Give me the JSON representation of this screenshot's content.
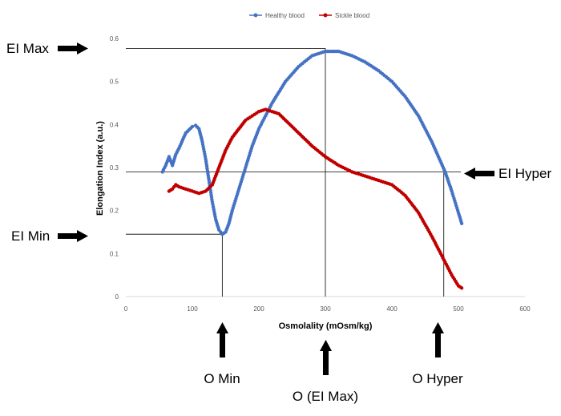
{
  "chart_data": {
    "type": "scatter",
    "title": "",
    "xlabel": "Osmolality (mOsm/kg)",
    "ylabel": "Elongation Index (a.u.)",
    "xlim": [
      0,
      600
    ],
    "ylim": [
      0,
      0.6
    ],
    "x_ticks": [
      0,
      100,
      200,
      300,
      400,
      500,
      600
    ],
    "y_ticks": [
      0,
      0.1,
      0.2,
      0.3,
      0.4,
      0.5,
      0.6
    ],
    "x_tick_labels": [
      "0",
      "100",
      "200",
      "300",
      "400",
      "500",
      "600"
    ],
    "y_tick_labels": [
      "0",
      "0.1",
      "0.2",
      "0.3",
      "0.4",
      "0.5",
      "0.6"
    ],
    "grid": false,
    "legend_position": "top-center",
    "series": [
      {
        "name": "Healthy blood",
        "color": "#4472C4",
        "points": [
          [
            55,
            0.29
          ],
          [
            60,
            0.305
          ],
          [
            65,
            0.325
          ],
          [
            70,
            0.305
          ],
          [
            75,
            0.33
          ],
          [
            80,
            0.345
          ],
          [
            90,
            0.38
          ],
          [
            100,
            0.395
          ],
          [
            105,
            0.398
          ],
          [
            110,
            0.39
          ],
          [
            115,
            0.36
          ],
          [
            120,
            0.32
          ],
          [
            125,
            0.27
          ],
          [
            130,
            0.22
          ],
          [
            135,
            0.18
          ],
          [
            140,
            0.155
          ],
          [
            145,
            0.145
          ],
          [
            150,
            0.15
          ],
          [
            155,
            0.17
          ],
          [
            160,
            0.2
          ],
          [
            170,
            0.25
          ],
          [
            180,
            0.3
          ],
          [
            190,
            0.35
          ],
          [
            200,
            0.39
          ],
          [
            210,
            0.42
          ],
          [
            220,
            0.45
          ],
          [
            240,
            0.5
          ],
          [
            260,
            0.535
          ],
          [
            280,
            0.56
          ],
          [
            300,
            0.57
          ],
          [
            320,
            0.57
          ],
          [
            340,
            0.56
          ],
          [
            360,
            0.545
          ],
          [
            380,
            0.525
          ],
          [
            400,
            0.5
          ],
          [
            420,
            0.465
          ],
          [
            440,
            0.42
          ],
          [
            460,
            0.36
          ],
          [
            470,
            0.325
          ],
          [
            480,
            0.29
          ],
          [
            490,
            0.245
          ],
          [
            500,
            0.195
          ],
          [
            505,
            0.17
          ]
        ]
      },
      {
        "name": "Sickle blood",
        "color": "#C00000",
        "points": [
          [
            65,
            0.245
          ],
          [
            70,
            0.25
          ],
          [
            75,
            0.26
          ],
          [
            80,
            0.255
          ],
          [
            90,
            0.25
          ],
          [
            100,
            0.245
          ],
          [
            110,
            0.24
          ],
          [
            120,
            0.245
          ],
          [
            130,
            0.26
          ],
          [
            140,
            0.3
          ],
          [
            150,
            0.34
          ],
          [
            160,
            0.37
          ],
          [
            170,
            0.39
          ],
          [
            180,
            0.41
          ],
          [
            190,
            0.42
          ],
          [
            200,
            0.43
          ],
          [
            210,
            0.435
          ],
          [
            220,
            0.43
          ],
          [
            230,
            0.425
          ],
          [
            240,
            0.41
          ],
          [
            260,
            0.38
          ],
          [
            280,
            0.35
          ],
          [
            300,
            0.325
          ],
          [
            320,
            0.305
          ],
          [
            340,
            0.29
          ],
          [
            360,
            0.28
          ],
          [
            380,
            0.27
          ],
          [
            400,
            0.26
          ],
          [
            420,
            0.235
          ],
          [
            440,
            0.195
          ],
          [
            460,
            0.14
          ],
          [
            480,
            0.08
          ],
          [
            490,
            0.05
          ],
          [
            500,
            0.025
          ],
          [
            505,
            0.02
          ]
        ]
      }
    ],
    "reference_lines": [
      {
        "name": "ei-max",
        "y": 0.577,
        "x_to": 300
      },
      {
        "name": "ei-hyper",
        "y": 0.29
      },
      {
        "name": "ei-min",
        "y": 0.145,
        "x_to": 145
      },
      {
        "name": "o-min",
        "x": 145,
        "y_to": 0.145
      },
      {
        "name": "o-ei-max",
        "x": 300,
        "y_to": 0.577
      },
      {
        "name": "o-hyper",
        "x": 478,
        "y_to": 0.29
      }
    ],
    "annotations": {
      "ei_max": "EI Max",
      "ei_min": "EI Min",
      "ei_hyper": "EI Hyper",
      "o_min": "O Min",
      "o_ei_max": "O (EI Max)",
      "o_hyper": "O Hyper"
    }
  }
}
